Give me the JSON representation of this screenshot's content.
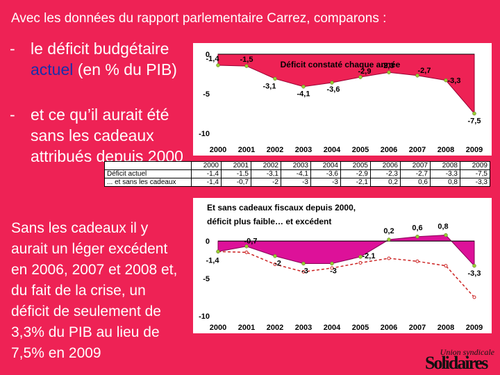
{
  "slide": {
    "title": "Avec les données du rapport parlementaire Carrez, comparons :",
    "bullet_dash": "-",
    "bullet1_pre": "le déficit budgétaire ",
    "bullet1_hl": "actuel",
    "bullet1_post": " (en % du PIB)",
    "bullet2": "et ce qu’il aurait été sans les cadeaux attribués depuis 2000",
    "bottom_text": "Sans les cadeaux il y aurait un léger excédent en 2006, 2007 et 2008 et, du fait de la crise, un déficit de seulement de 3,3% du PIB au lieu de 7,5% en 2009",
    "logo_top": "Union syndicale",
    "logo_main": "Solidaires"
  },
  "table": {
    "years": [
      "2000",
      "2001",
      "2002",
      "2003",
      "2004",
      "2005",
      "2006",
      "2007",
      "2008",
      "2009"
    ],
    "rows": [
      {
        "label": "Déficit actuel",
        "values": [
          "-1,4",
          "-1,5",
          "-3,1",
          "-4,1",
          "-3,6",
          "-2,9",
          "-2,3",
          "-2,7",
          "-3,3",
          "-7,5"
        ]
      },
      {
        "label": "... et sans les cadeaux",
        "values": [
          "-1,4",
          "-0,7",
          "-2",
          "-3",
          "-3",
          "-2,1",
          "0,2",
          "0,6",
          "0,8",
          "-3,3"
        ]
      }
    ]
  },
  "chart_data": [
    {
      "type": "area",
      "title": "Déficit constaté chaque année",
      "categories": [
        "2000",
        "2001",
        "2002",
        "2003",
        "2004",
        "2005",
        "2006",
        "2007",
        "2008",
        "2009"
      ],
      "values": [
        -1.4,
        -1.5,
        -3.1,
        -4.1,
        -3.6,
        -2.9,
        -2.3,
        -2.7,
        -3.3,
        -7.5
      ],
      "labels": [
        "-1,4",
        "-1,5",
        "-3,1",
        "-4,1",
        "-3,6",
        "-2,9",
        "-2,3",
        "-2,7",
        "-3,3",
        "-7,5"
      ],
      "yticks": [
        "0",
        "-5",
        "-10"
      ],
      "ylim": [
        -10,
        0
      ],
      "color": "#ee2255"
    },
    {
      "type": "area",
      "title_line1": "Et sans cadeaux fiscaux depuis 2000,",
      "title_line2": "déficit plus faible… et excédent",
      "categories": [
        "2000",
        "2001",
        "2002",
        "2003",
        "2004",
        "2005",
        "2006",
        "2007",
        "2008",
        "2009"
      ],
      "series": [
        {
          "values": [
            -1.4,
            -0.7,
            -2,
            -3,
            -3,
            -2.1,
            0.2,
            0.6,
            0.8,
            -3.3
          ],
          "labels": [
            "-1,4",
            "-0,7",
            "-2",
            "-3",
            "-3",
            "-2,1",
            "0,2",
            "0,6",
            "0,8",
            "-3,3"
          ],
          "color": "#dd1199"
        },
        {
          "values": [
            -1.4,
            -1.5,
            -3.1,
            -4.1,
            -3.6,
            -2.9,
            -2.3,
            -2.7,
            -3.3,
            -7.5
          ],
          "style": "dashed",
          "color": "#cc2222"
        }
      ],
      "yticks": [
        "0",
        "-5",
        "-10"
      ],
      "ylim": [
        -10,
        1.5
      ]
    }
  ]
}
